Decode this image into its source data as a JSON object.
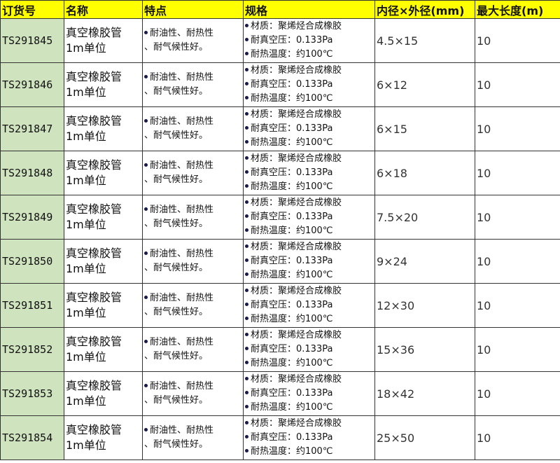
{
  "headers": [
    "订货号",
    "名称",
    "特点",
    "规格",
    "内径×外径(mm)",
    "最大长度(m)"
  ],
  "colors": {
    "header_bg": "#ffff00",
    "code_bg": "#cfe3bf"
  },
  "rows": [
    {
      "code": "TS291845",
      "name1": "真空橡胶管",
      "name2": "1m单位",
      "feat1": "耐油性、耐热性",
      "feat2": "、耐气候性好。",
      "spec1": "材质：聚烯烃合成橡胶",
      "spec2": "耐真空压：0.133Pa",
      "spec3": "耐热温度：约100℃",
      "size": "4.5×15",
      "len": "10"
    },
    {
      "code": "TS291846",
      "name1": "真空橡胶管",
      "name2": "1m单位",
      "feat1": "耐油性、耐热性",
      "feat2": "、耐气候性好。",
      "spec1": "材质：聚烯烃合成橡胶",
      "spec2": "耐真空压：0.133Pa",
      "spec3": "耐热温度：约100℃",
      "size": "6×12",
      "len": "10"
    },
    {
      "code": "TS291847",
      "name1": "真空橡胶管",
      "name2": "1m单位",
      "feat1": "耐油性、耐热性",
      "feat2": "、耐气候性好。",
      "spec1": "材质：聚烯烃合成橡胶",
      "spec2": "耐真空压：0.133Pa",
      "spec3": "耐热温度：约100℃",
      "size": "6×15",
      "len": "10"
    },
    {
      "code": "TS291848",
      "name1": "真空橡胶管",
      "name2": "1m单位",
      "feat1": "耐油性、耐热性",
      "feat2": "、耐气候性好。",
      "spec1": "材质：聚烯烃合成橡胶",
      "spec2": "耐真空压：0.133Pa",
      "spec3": "耐热温度：约100℃",
      "size": "6×18",
      "len": "10"
    },
    {
      "code": "TS291849",
      "name1": "真空橡胶管",
      "name2": "1m单位",
      "feat1": "耐油性、耐热性",
      "feat2": "、耐气候性好。",
      "spec1": "材质：聚烯烃合成橡胶",
      "spec2": "耐真空压：0.133Pa",
      "spec3": "耐热温度：约100℃",
      "size": "7.5×20",
      "len": "10"
    },
    {
      "code": "TS291850",
      "name1": "真空橡胶管",
      "name2": "1m单位",
      "feat1": "耐油性、耐热性",
      "feat2": "、耐气候性好。",
      "spec1": "材质：聚烯烃合成橡胶",
      "spec2": "耐真空压：0.133Pa",
      "spec3": "耐热温度：约100℃",
      "size": "9×24",
      "len": "10"
    },
    {
      "code": "TS291851",
      "name1": "真空橡胶管",
      "name2": "1m单位",
      "feat1": "耐油性、耐热性",
      "feat2": "、耐气候性好。",
      "spec1": "材质：聚烯烃合成橡胶",
      "spec2": "耐真空压：0.133Pa",
      "spec3": "耐热温度：约100℃",
      "size": "12×30",
      "len": "10"
    },
    {
      "code": "TS291852",
      "name1": "真空橡胶管",
      "name2": "1m单位",
      "feat1": "耐油性、耐热性",
      "feat2": "、耐气候性好。",
      "spec1": "材质：聚烯烃合成橡胶",
      "spec2": "耐真空压：0.133Pa",
      "spec3": "耐热温度：约100℃",
      "size": "15×36",
      "len": "10"
    },
    {
      "code": "TS291853",
      "name1": "真空橡胶管",
      "name2": "1m单位",
      "feat1": "耐油性、耐热性",
      "feat2": "、耐气候性好。",
      "spec1": "材质：聚烯烃合成橡胶",
      "spec2": "耐真空压：0.133Pa",
      "spec3": "耐热温度：约100℃",
      "size": "18×42",
      "len": "10"
    },
    {
      "code": "TS291854",
      "name1": "真空橡胶管",
      "name2": "1m单位",
      "feat1": "耐油性、耐热性",
      "feat2": "、耐气候性好。",
      "spec1": "材质：聚烯烃合成橡胶",
      "spec2": "耐真空压：0.133Pa",
      "spec3": "耐热温度：约100℃",
      "size": "25×50",
      "len": "10"
    }
  ]
}
